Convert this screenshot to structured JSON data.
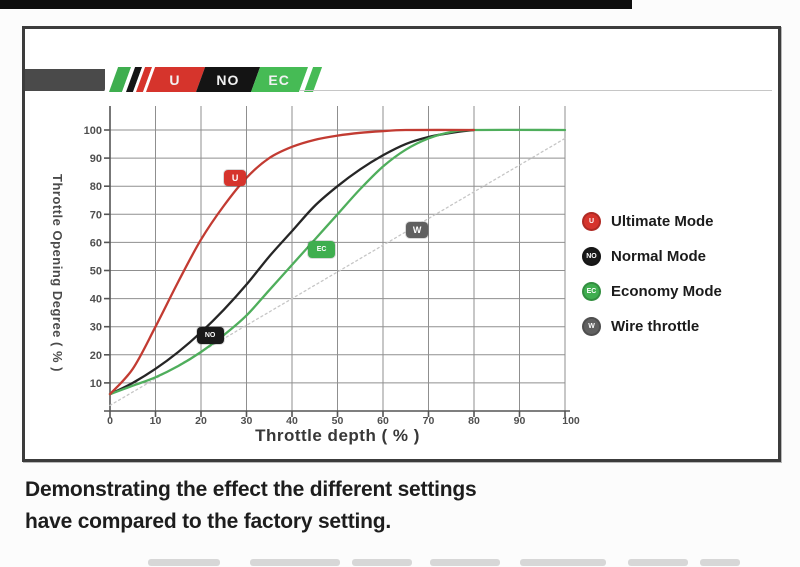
{
  "page": {
    "caption_line1": "Demonstrating the effect the different settings",
    "caption_line2": "have compared to the factory setting."
  },
  "logo": {
    "segments": [
      {
        "label": "U",
        "color": "#d6342c"
      },
      {
        "label": "NO",
        "color": "#141414"
      },
      {
        "label": "EC",
        "color": "#46bb55"
      }
    ]
  },
  "chart_data": {
    "type": "line",
    "title": "",
    "xlabel": "Throttle depth ( % )",
    "ylabel": "Throttle Opening Degree ( % )",
    "xlim": [
      0,
      100
    ],
    "ylim": [
      0,
      100
    ],
    "xticks": [
      0,
      10,
      20,
      30,
      40,
      50,
      60,
      70,
      80,
      90,
      100
    ],
    "yticks": [
      10,
      20,
      30,
      40,
      50,
      60,
      70,
      80,
      90,
      100
    ],
    "grid": true,
    "legend_position": "right",
    "series": [
      {
        "name": "Ultimate Mode",
        "badge": "U",
        "color": "#c23b32",
        "badge_color": "#d6342c",
        "line_style": "solid",
        "badge_at": [
          27.5,
          83
        ],
        "points": [
          [
            0,
            6
          ],
          [
            5,
            15
          ],
          [
            10,
            30
          ],
          [
            15,
            46
          ],
          [
            20,
            61
          ],
          [
            25,
            73
          ],
          [
            30,
            83
          ],
          [
            35,
            90
          ],
          [
            40,
            94
          ],
          [
            45,
            96.5
          ],
          [
            50,
            98
          ],
          [
            55,
            99
          ],
          [
            60,
            99.6
          ],
          [
            65,
            100
          ],
          [
            80,
            100
          ]
        ]
      },
      {
        "name": "Normal Mode",
        "badge": "NO",
        "color": "#262626",
        "badge_color": "#1a1a1a",
        "line_style": "solid",
        "badge_at": [
          22,
          27
        ],
        "points": [
          [
            0,
            6
          ],
          [
            5,
            10
          ],
          [
            10,
            15
          ],
          [
            15,
            21
          ],
          [
            20,
            28
          ],
          [
            25,
            36
          ],
          [
            30,
            45
          ],
          [
            35,
            55
          ],
          [
            40,
            64
          ],
          [
            45,
            73
          ],
          [
            50,
            80
          ],
          [
            55,
            86
          ],
          [
            60,
            91
          ],
          [
            65,
            95
          ],
          [
            70,
            97.5
          ],
          [
            75,
            99
          ],
          [
            80,
            100
          ]
        ]
      },
      {
        "name": "Economy Mode",
        "badge": "EC",
        "color": "#4fae5c",
        "badge_color": "#3fae4f",
        "line_style": "solid",
        "badge_at": [
          46.5,
          57.5
        ],
        "points": [
          [
            0,
            6
          ],
          [
            5,
            9
          ],
          [
            10,
            12
          ],
          [
            15,
            16
          ],
          [
            20,
            21
          ],
          [
            25,
            27
          ],
          [
            30,
            34
          ],
          [
            35,
            43
          ],
          [
            40,
            52
          ],
          [
            45,
            61
          ],
          [
            50,
            70
          ],
          [
            55,
            79
          ],
          [
            60,
            87
          ],
          [
            65,
            93
          ],
          [
            70,
            97
          ],
          [
            75,
            99.3
          ],
          [
            80,
            100
          ],
          [
            100,
            100
          ]
        ]
      },
      {
        "name": "Wire throttle",
        "badge": "W",
        "color": "#c6c6c6",
        "badge_color": "#606060",
        "line_style": "dotted",
        "badge_at": [
          67.5,
          64.5
        ],
        "points": [
          [
            0,
            2
          ],
          [
            100,
            97
          ]
        ]
      }
    ]
  }
}
